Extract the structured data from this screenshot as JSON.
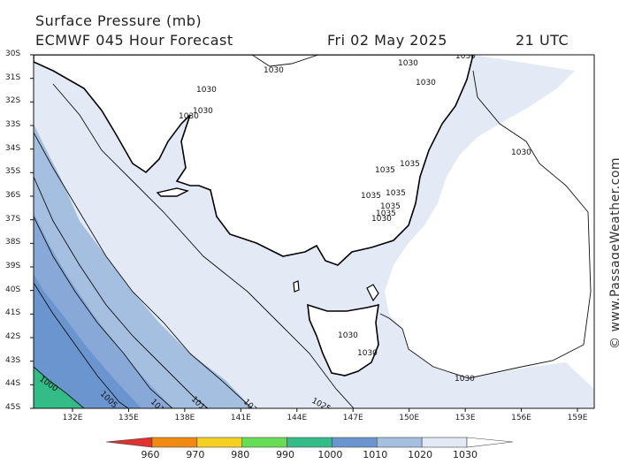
{
  "header": {
    "line1": "Surface Pressure (mb)",
    "line2_model": "ECMWF 045 Hour Forecast",
    "line2_date": "Fri 02 May 2025",
    "line2_time": "21 UTC"
  },
  "credit": "© www.PassageWeather.com",
  "lat_labels": [
    "30S",
    "31S",
    "32S",
    "33S",
    "34S",
    "35S",
    "36S",
    "37S",
    "38S",
    "39S",
    "40S",
    "41S",
    "42S",
    "43S",
    "44S",
    "45S"
  ],
  "lon_labels": [
    "132E",
    "135E",
    "138E",
    "141E",
    "144E",
    "147E",
    "150E",
    "153E",
    "156E",
    "159E"
  ],
  "isobar_labels": [
    "1030",
    "1030",
    "1030",
    "1030",
    "1030",
    "1030",
    "1030",
    "1035",
    "1035",
    "1035",
    "1035",
    "1035",
    "1035",
    "1030",
    "1030",
    "1030",
    "1030",
    "1030",
    "1025",
    "1020",
    "1015",
    "1010",
    "1005",
    "1000"
  ],
  "colorbar": {
    "values": [
      "960",
      "970",
      "980",
      "990",
      "1000",
      "1010",
      "1020",
      "1030"
    ],
    "colors": [
      "#e03030",
      "#f08a10",
      "#f5d020",
      "#66dd55",
      "#33bb88",
      "#6a95cf",
      "#a5bfe0",
      "#e3eaf6"
    ]
  },
  "colors": {
    "land": "#ffffff",
    "band_1030": "#e3eaf6",
    "band_1020": "#a5bfe0",
    "band_1010": "#6a95cf",
    "band_1000": "#33bb88"
  }
}
